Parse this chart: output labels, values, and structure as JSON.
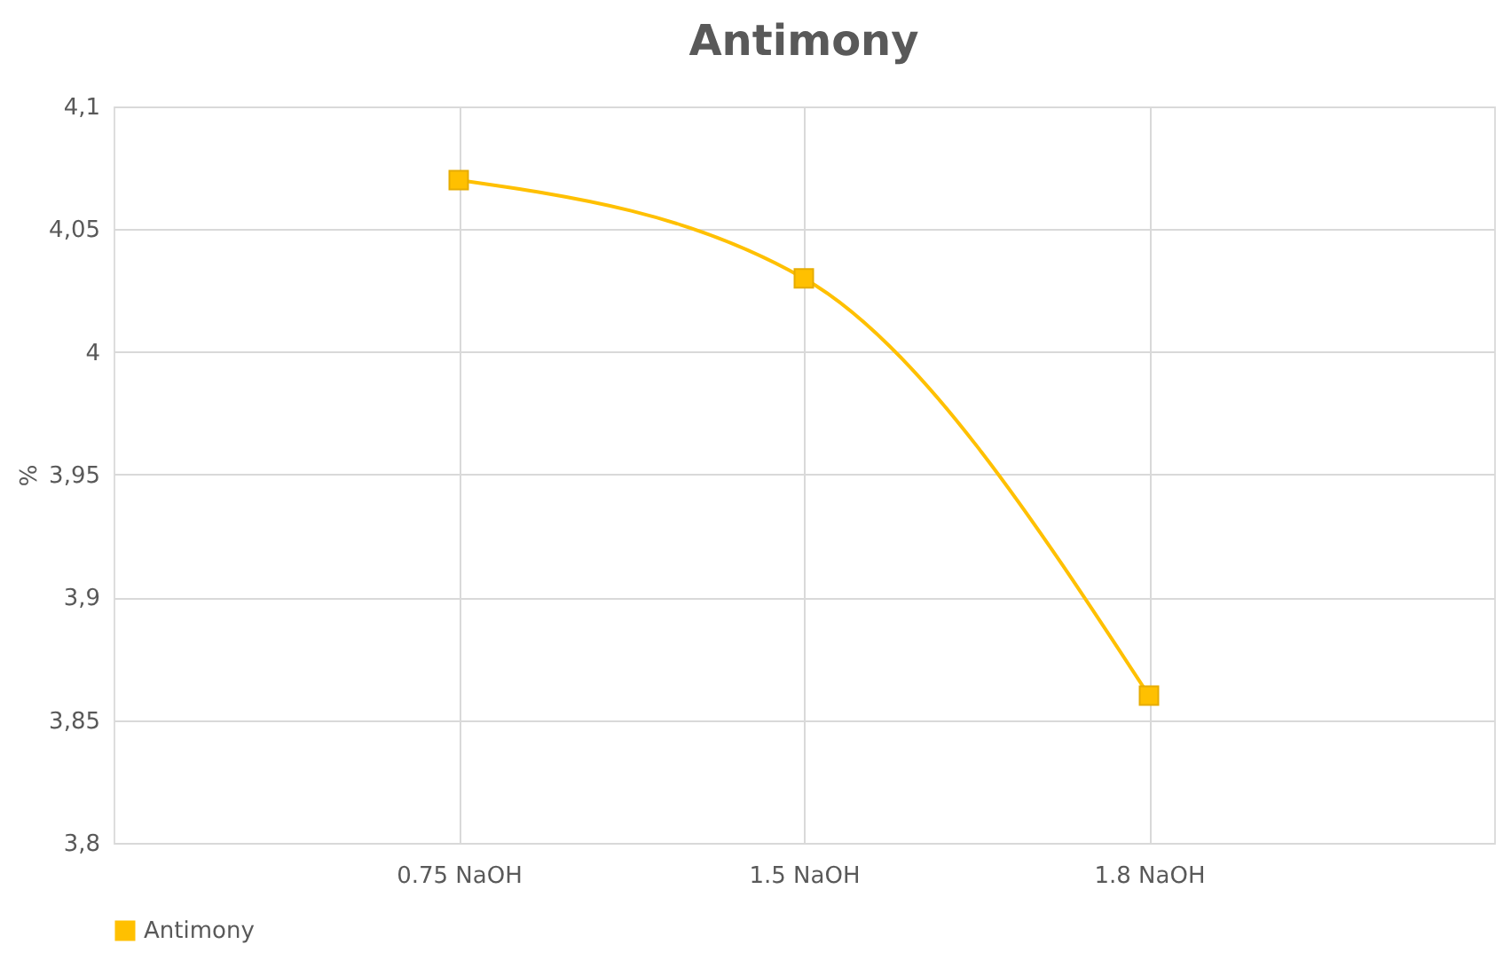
{
  "chart_data": {
    "type": "line",
    "title": "Antimony",
    "ylabel": "%",
    "categories": [
      "0.75 NaOH",
      "1.5 NaOH",
      "1.8 NaOH"
    ],
    "series": [
      {
        "name": "Antimony",
        "color": "#ffc000",
        "values": [
          4.07,
          4.03,
          3.86
        ]
      }
    ],
    "ylim": [
      3.8,
      4.1
    ],
    "yticks": [
      {
        "value": 3.8,
        "label": "3,8"
      },
      {
        "value": 3.85,
        "label": "3,85"
      },
      {
        "value": 3.9,
        "label": "3,9"
      },
      {
        "value": 3.95,
        "label": "3,95"
      },
      {
        "value": 4,
        "label": "4"
      },
      {
        "value": 4.05,
        "label": "4,05"
      },
      {
        "value": 4.1,
        "label": "4,1"
      }
    ],
    "grid": true,
    "legend": "bottom",
    "marker": "square",
    "line_style": "solid"
  }
}
